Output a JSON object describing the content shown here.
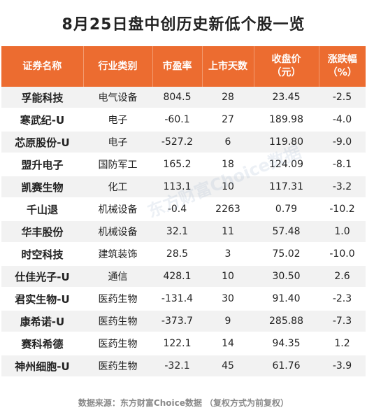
{
  "title": "8月25日盘中创历史新低个股一览",
  "table": {
    "headers": [
      {
        "line1": "证券名称",
        "line2": ""
      },
      {
        "line1": "行业类别",
        "line2": ""
      },
      {
        "line1": "市盈率",
        "line2": ""
      },
      {
        "line1": "上市天数",
        "line2": ""
      },
      {
        "line1": "收盘价",
        "line2": "（元）"
      },
      {
        "line1": "涨跌幅",
        "line2": "（%）"
      }
    ],
    "rows": [
      {
        "name": "孚能科技",
        "industry": "电气设备",
        "pe": "804.5",
        "days": "28",
        "close": "23.45",
        "change": "-2.5"
      },
      {
        "name": "寒武纪-U",
        "industry": "电子",
        "pe": "-60.1",
        "days": "27",
        "close": "189.98",
        "change": "-4.0"
      },
      {
        "name": "芯原股份-U",
        "industry": "电子",
        "pe": "-527.2",
        "days": "6",
        "close": "119.80",
        "change": "-9.0"
      },
      {
        "name": "盟升电子",
        "industry": "国防军工",
        "pe": "165.2",
        "days": "18",
        "close": "124.09",
        "change": "-8.1"
      },
      {
        "name": "凯赛生物",
        "industry": "化工",
        "pe": "113.1",
        "days": "10",
        "close": "117.31",
        "change": "-3.2"
      },
      {
        "name": "千山退",
        "industry": "机械设备",
        "pe": "-0.4",
        "days": "2263",
        "close": "0.79",
        "change": "-10.2"
      },
      {
        "name": "华丰股份",
        "industry": "机械设备",
        "pe": "32.1",
        "days": "11",
        "close": "57.48",
        "change": "1.0"
      },
      {
        "name": "时空科技",
        "industry": "建筑装饰",
        "pe": "28.5",
        "days": "3",
        "close": "75.02",
        "change": "-10.0"
      },
      {
        "name": "仕佳光子-U",
        "industry": "通信",
        "pe": "428.1",
        "days": "10",
        "close": "30.50",
        "change": "2.6"
      },
      {
        "name": "君实生物-U",
        "industry": "医药生物",
        "pe": "-131.4",
        "days": "30",
        "close": "91.40",
        "change": "-2.3"
      },
      {
        "name": "康希诺-U",
        "industry": "医药生物",
        "pe": "-373.7",
        "days": "9",
        "close": "285.88",
        "change": "-7.3"
      },
      {
        "name": "赛科希德",
        "industry": "医药生物",
        "pe": "122.1",
        "days": "14",
        "close": "94.35",
        "change": "1.2"
      },
      {
        "name": "神州细胞-U",
        "industry": "医药生物",
        "pe": "-32.1",
        "days": "45",
        "close": "61.76",
        "change": "-3.9"
      }
    ]
  },
  "source": "数据来源：东方财富Choice数据 （复权方式为前复权）",
  "watermark": "东方财富Choice数据"
}
